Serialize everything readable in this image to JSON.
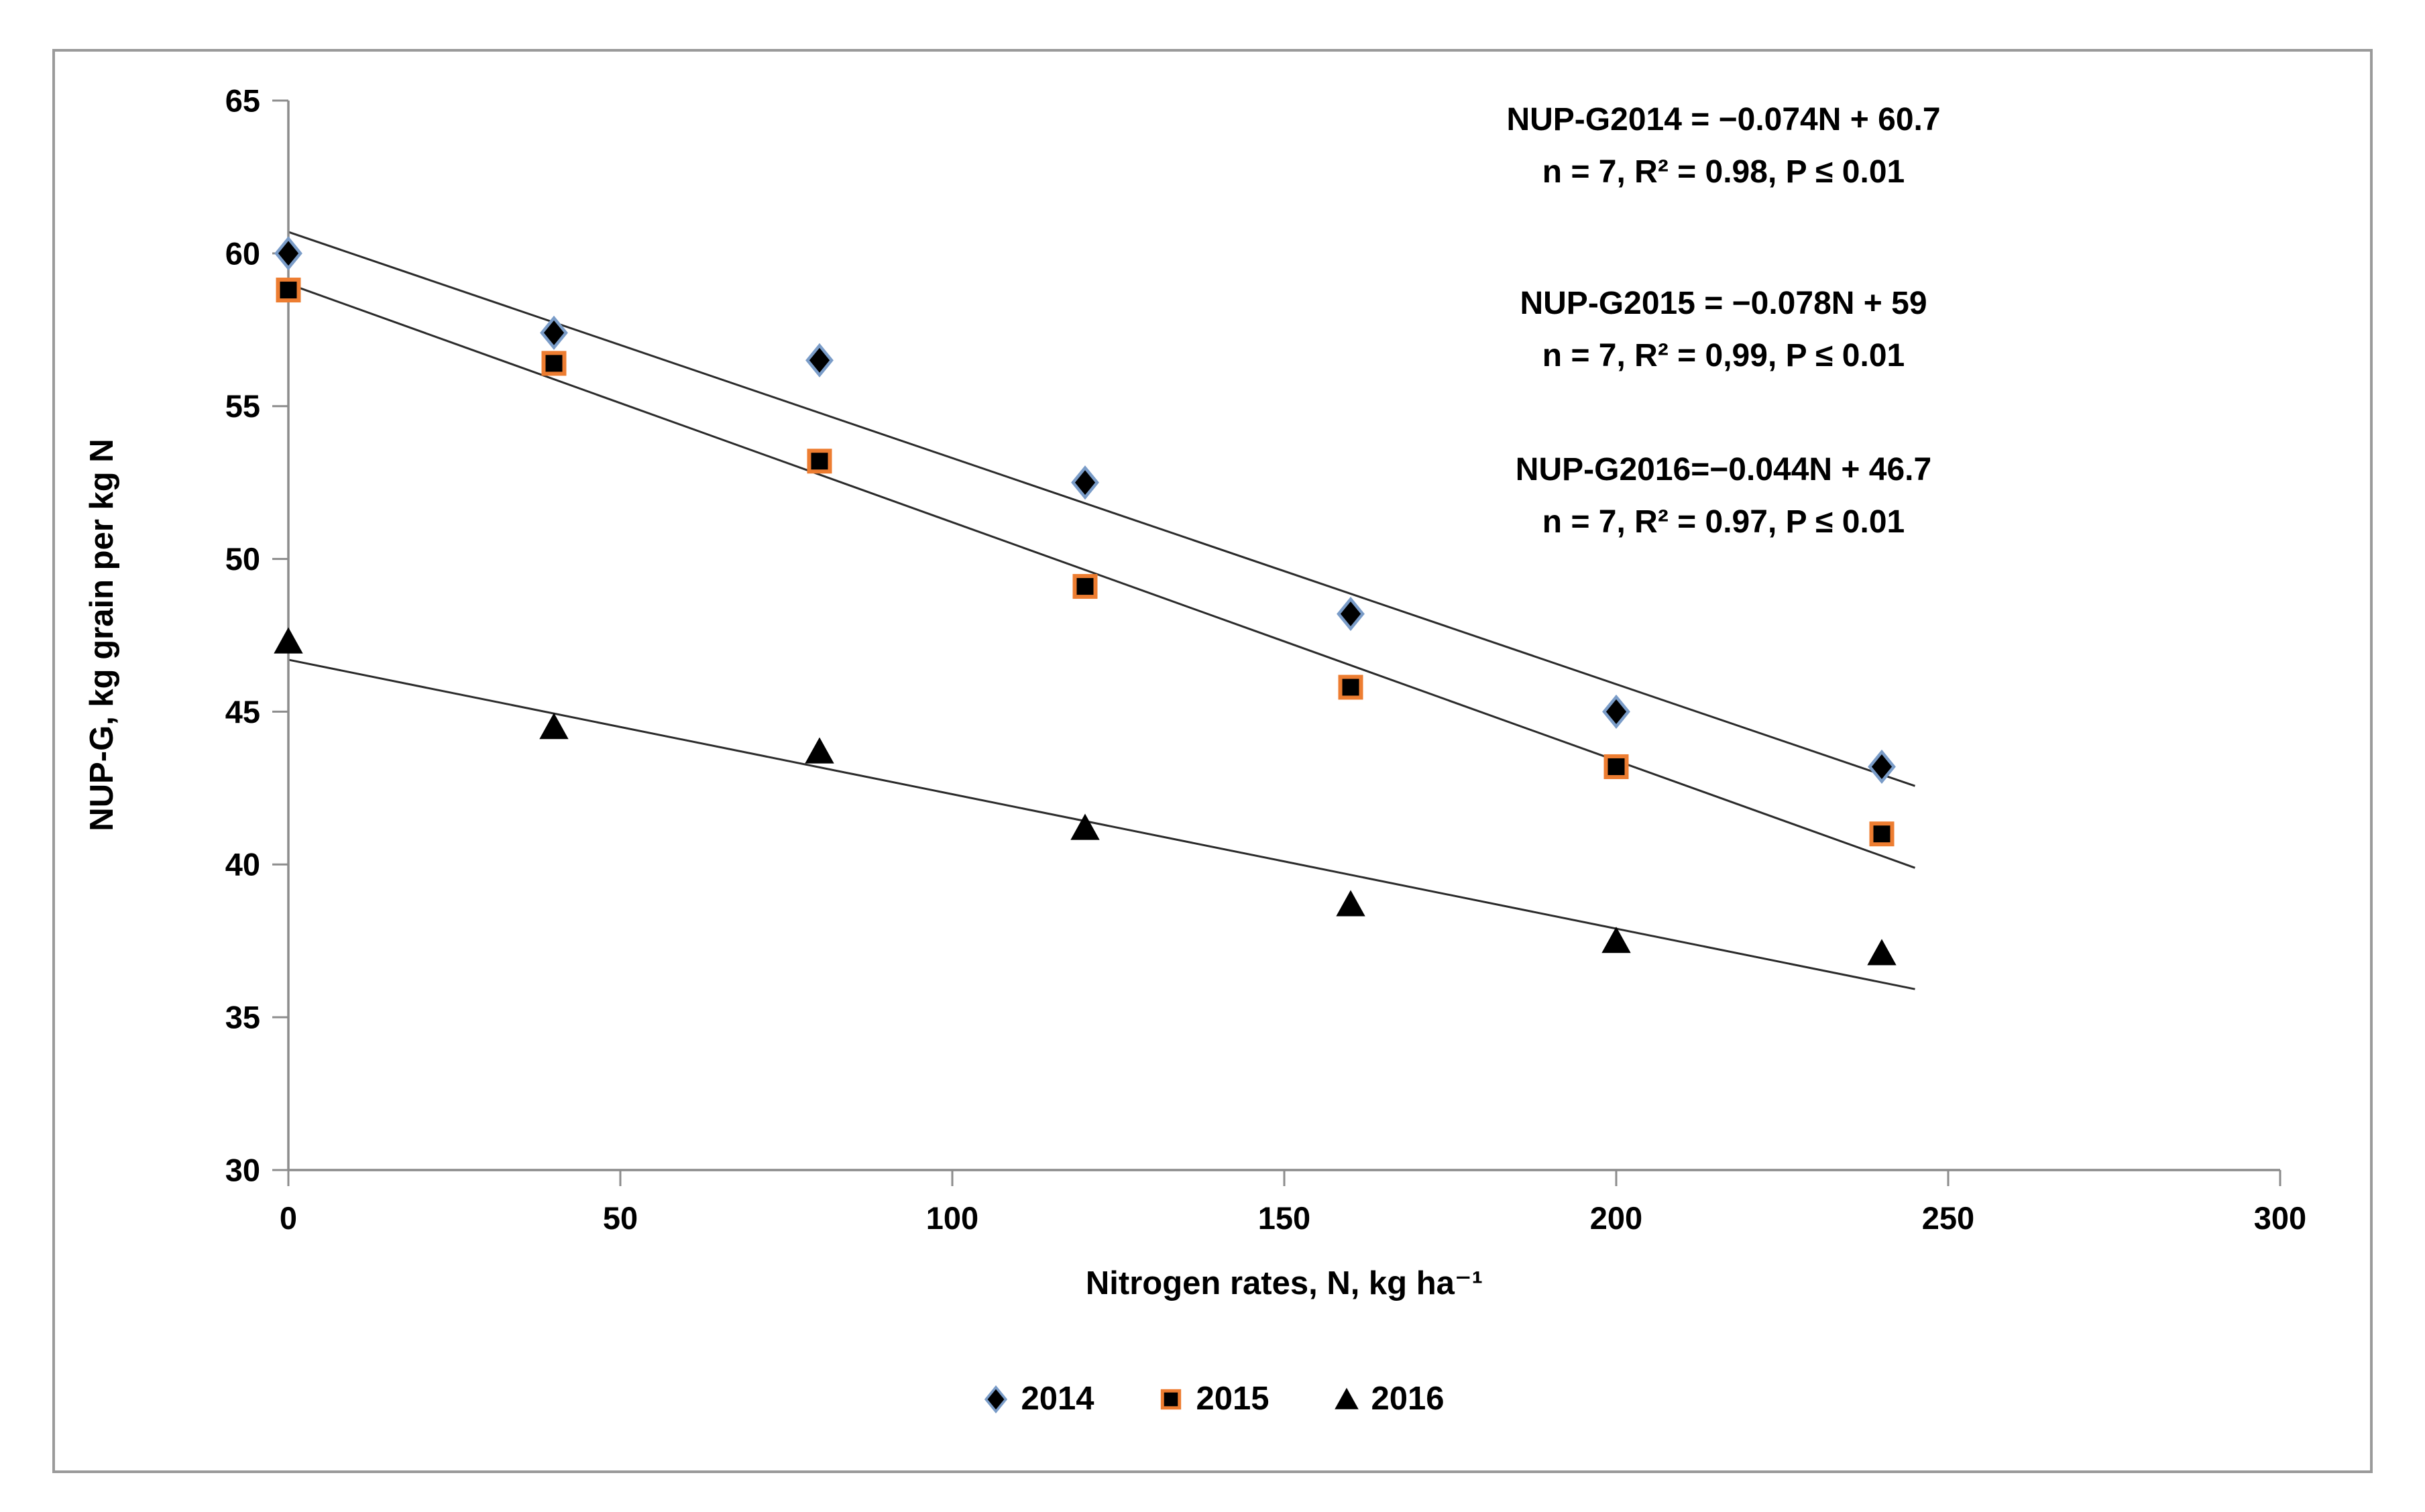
{
  "frame": {
    "border_color": "#9a9a9a",
    "background": "#ffffff"
  },
  "chart_data": {
    "type": "scatter",
    "x": [
      0,
      40,
      80,
      120,
      160,
      200,
      240
    ],
    "series": [
      {
        "name": "2014",
        "marker": "diamond",
        "marker_fill": "#000000",
        "marker_outline": "#7a9cc8",
        "values": [
          60.0,
          57.4,
          56.5,
          52.5,
          48.2,
          45.0,
          43.2
        ],
        "trend": {
          "slope": -0.074,
          "intercept": 60.7,
          "x_start": 0,
          "x_end": 245
        }
      },
      {
        "name": "2015",
        "marker": "square",
        "marker_fill": "#000000",
        "marker_outline": "#ed7d31",
        "values": [
          58.8,
          56.4,
          53.2,
          49.1,
          45.8,
          43.2,
          41.0
        ],
        "trend": {
          "slope": -0.078,
          "intercept": 59,
          "x_start": 0,
          "x_end": 245
        }
      },
      {
        "name": "2016",
        "marker": "triangle",
        "marker_fill": "#000000",
        "marker_outline": "#000000",
        "values": [
          47.3,
          44.5,
          43.7,
          41.2,
          38.7,
          37.5,
          37.1
        ],
        "trend": {
          "slope": -0.044,
          "intercept": 46.7,
          "x_start": 0,
          "x_end": 245
        }
      }
    ],
    "title": "",
    "xlabel": "Nitrogen rates, N, kg ha⁻¹",
    "ylabel": "NUP-G, kg grain per kg N",
    "xlim": [
      0,
      300
    ],
    "ylim": [
      30,
      65
    ],
    "x_ticks": [
      0,
      50,
      100,
      150,
      200,
      250,
      300
    ],
    "y_ticks": [
      30,
      35,
      40,
      45,
      50,
      55,
      60,
      65
    ],
    "grid": false,
    "legend_position": "bottom",
    "axis_color": "#8c8c8c",
    "trendline_color": "#2b2b2b",
    "text_color": "#000000"
  },
  "annotations": [
    {
      "line1": "NUP-G2014 = −0.074N + 60.7",
      "line2": "n = 7, R² = 0.98, P ≤ 0.01"
    },
    {
      "line1": "NUP-G2015 = −0.078N + 59",
      "line2": "n = 7, R² = 0,99, P ≤ 0.01"
    },
    {
      "line1": "NUP-G2016=−0.044N + 46.7",
      "line2": "n = 7, R² = 0.97, P ≤ 0.01"
    }
  ],
  "legend": {
    "items": [
      {
        "label": "2014",
        "marker": "diamond"
      },
      {
        "label": "2015",
        "marker": "square"
      },
      {
        "label": "2016",
        "marker": "triangle"
      }
    ]
  }
}
